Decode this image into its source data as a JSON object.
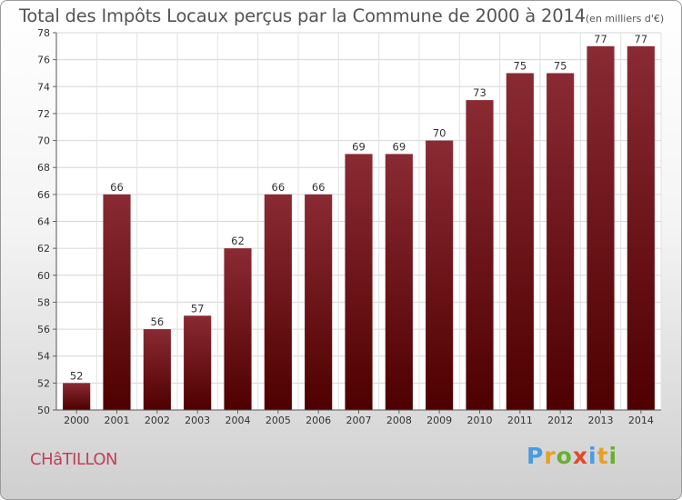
{
  "chart_data": {
    "type": "bar",
    "title": "Total des Impôts Locaux perçus par la Commune de 2000 à 2014",
    "unit_note": "(en milliers d'€)",
    "categories": [
      "2000",
      "2001",
      "2002",
      "2003",
      "2004",
      "2005",
      "2006",
      "2007",
      "2008",
      "2009",
      "2010",
      "2011",
      "2012",
      "2013",
      "2014"
    ],
    "values": [
      52,
      66,
      56,
      57,
      62,
      66,
      66,
      69,
      69,
      70,
      73,
      75,
      75,
      77,
      77
    ],
    "ylim": [
      50,
      78
    ],
    "yticks": [
      50,
      52,
      54,
      56,
      58,
      60,
      62,
      64,
      66,
      68,
      70,
      72,
      74,
      76,
      78
    ],
    "xlabel": "",
    "ylabel": "",
    "grid": true,
    "bar_color_top": "#8a2a33",
    "bar_color_bottom": "#4e0000"
  },
  "footer": {
    "commune": "CHâTILLON",
    "brand": "Proxiti",
    "brand_colors": [
      "#4a9be0",
      "#e8a020",
      "#68b030",
      "#e04a2a",
      "#4a9be0",
      "#e8a020",
      "#68b030"
    ]
  }
}
